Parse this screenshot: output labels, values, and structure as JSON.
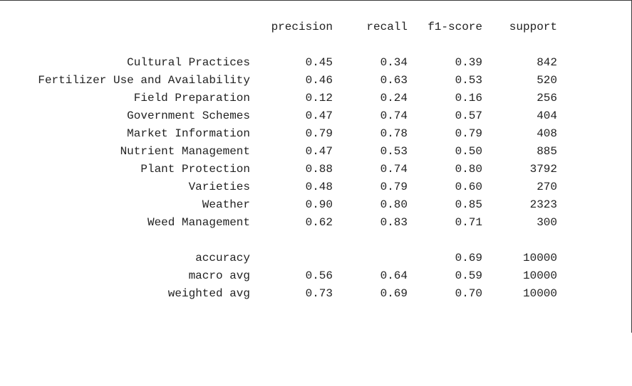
{
  "report": {
    "headers": {
      "precision": "precision",
      "recall": "recall",
      "f1": "f1-score",
      "support": "support"
    },
    "classes": [
      {
        "label": "Cultural Practices",
        "precision": "0.45",
        "recall": "0.34",
        "f1": "0.39",
        "support": "842"
      },
      {
        "label": "Fertilizer Use and Availability",
        "precision": "0.46",
        "recall": "0.63",
        "f1": "0.53",
        "support": "520"
      },
      {
        "label": "Field Preparation",
        "precision": "0.12",
        "recall": "0.24",
        "f1": "0.16",
        "support": "256"
      },
      {
        "label": "Government Schemes",
        "precision": "0.47",
        "recall": "0.74",
        "f1": "0.57",
        "support": "404"
      },
      {
        "label": "Market Information",
        "precision": "0.79",
        "recall": "0.78",
        "f1": "0.79",
        "support": "408"
      },
      {
        "label": "Nutrient Management",
        "precision": "0.47",
        "recall": "0.53",
        "f1": "0.50",
        "support": "885"
      },
      {
        "label": "Plant Protection",
        "precision": "0.88",
        "recall": "0.74",
        "f1": "0.80",
        "support": "3792"
      },
      {
        "label": "Varieties",
        "precision": "0.48",
        "recall": "0.79",
        "f1": "0.60",
        "support": "270"
      },
      {
        "label": "Weather",
        "precision": "0.90",
        "recall": "0.80",
        "f1": "0.85",
        "support": "2323"
      },
      {
        "label": "Weed Management",
        "precision": "0.62",
        "recall": "0.83",
        "f1": "0.71",
        "support": "300"
      }
    ],
    "summary": [
      {
        "label": "accuracy",
        "precision": "",
        "recall": "",
        "f1": "0.69",
        "support": "10000"
      },
      {
        "label": "macro avg",
        "precision": "0.56",
        "recall": "0.64",
        "f1": "0.59",
        "support": "10000"
      },
      {
        "label": "weighted avg",
        "precision": "0.73",
        "recall": "0.69",
        "f1": "0.70",
        "support": "10000"
      }
    ]
  }
}
